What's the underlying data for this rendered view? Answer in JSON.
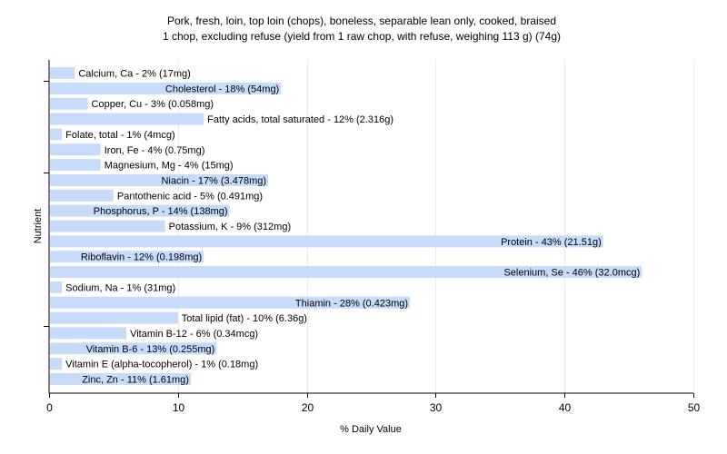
{
  "chart_data": {
    "type": "bar",
    "orientation": "horizontal",
    "title": "Pork, fresh, loin, top loin (chops), boneless, separable lean only, cooked, braised",
    "subtitle": "1 chop, excluding refuse (yield from 1 raw chop, with refuse, weighing 113 g) (74g)",
    "xlabel": "% Daily Value",
    "ylabel": "Nutrient",
    "xlim": [
      0,
      50
    ],
    "xticks": [
      0,
      10,
      20,
      30,
      40,
      50
    ],
    "grid": true,
    "bar_color": "#c6dcfa",
    "categories": [
      "Calcium, Ca",
      "Cholesterol",
      "Copper, Cu",
      "Fatty acids, total saturated",
      "Folate, total",
      "Iron, Fe",
      "Magnesium, Mg",
      "Niacin",
      "Pantothenic acid",
      "Phosphorus, P",
      "Potassium, K",
      "Protein",
      "Riboflavin",
      "Selenium, Se",
      "Sodium, Na",
      "Thiamin",
      "Total lipid (fat)",
      "Vitamin B-12",
      "Vitamin B-6",
      "Vitamin E (alpha-tocopherol)",
      "Zinc, Zn"
    ],
    "values": [
      2,
      18,
      3,
      12,
      1,
      4,
      4,
      17,
      5,
      14,
      9,
      43,
      12,
      46,
      1,
      28,
      10,
      6,
      13,
      1,
      11
    ],
    "labels": [
      "Calcium, Ca - 2% (17mg)",
      "Cholesterol - 18% (54mg)",
      "Copper, Cu - 3% (0.058mg)",
      "Fatty acids, total saturated - 12% (2.316g)",
      "Folate, total - 1% (4mcg)",
      "Iron, Fe - 4% (0.75mg)",
      "Magnesium, Mg - 4% (15mg)",
      "Niacin - 17% (3.478mg)",
      "Pantothenic acid - 5% (0.491mg)",
      "Phosphorus, P - 14% (138mg)",
      "Potassium, K - 9% (312mg)",
      "Protein - 43% (21.51g)",
      "Riboflavin - 12% (0.198mg)",
      "Selenium, Se - 46% (32.0mcg)",
      "Sodium, Na - 1% (31mg)",
      "Thiamin - 28% (0.423mg)",
      "Total lipid (fat) - 10% (6.36g)",
      "Vitamin B-12 - 6% (0.34mcg)",
      "Vitamin B-6 - 13% (0.255mg)",
      "Vitamin E (alpha-tocopherol) - 1% (0.18mg)",
      "Zinc, Zn - 11% (1.61mg)"
    ]
  }
}
